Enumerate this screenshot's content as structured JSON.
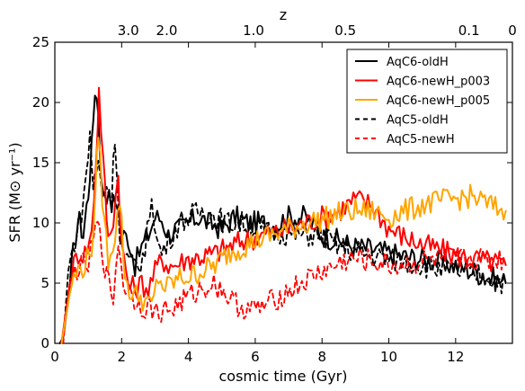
{
  "chart_data": {
    "type": "line",
    "xlabel": "cosmic time (Gyr)",
    "ylabel": "SFR (M⊙ yr⁻¹)",
    "top_axis_label": "z",
    "xlim": [
      0,
      13.7
    ],
    "ylim": [
      0,
      25
    ],
    "x_ticks": [
      0,
      2,
      4,
      6,
      8,
      10,
      12
    ],
    "y_ticks": [
      0,
      5,
      10,
      15,
      20,
      25
    ],
    "top_ticks": [
      {
        "label": "3.0",
        "t": 2.2
      },
      {
        "label": "2.0",
        "t": 3.35
      },
      {
        "label": "1.0",
        "t": 5.95
      },
      {
        "label": "0.5",
        "t": 8.7
      },
      {
        "label": "0.1",
        "t": 12.4
      },
      {
        "label": "0",
        "t": 13.7
      }
    ],
    "grid": false,
    "legend_position": "top-right",
    "series": [
      {
        "name": "AqC6-oldH",
        "color": "#000000",
        "dash": "solid",
        "points": [
          [
            0.15,
            0
          ],
          [
            0.25,
            0.5
          ],
          [
            0.4,
            3.5
          ],
          [
            0.55,
            7.5
          ],
          [
            0.7,
            10.5
          ],
          [
            0.85,
            9
          ],
          [
            1.0,
            12.5
          ],
          [
            1.1,
            16
          ],
          [
            1.2,
            21.2
          ],
          [
            1.3,
            19.5
          ],
          [
            1.4,
            13
          ],
          [
            1.55,
            12.5
          ],
          [
            1.7,
            11.5
          ],
          [
            1.85,
            12
          ],
          [
            2.0,
            9
          ],
          [
            2.2,
            8.8
          ],
          [
            2.4,
            6.5
          ],
          [
            2.6,
            8
          ],
          [
            2.8,
            9
          ],
          [
            3.0,
            10.5
          ],
          [
            3.2,
            10.3
          ],
          [
            3.4,
            9
          ],
          [
            3.6,
            9.5
          ],
          [
            3.8,
            9.5
          ],
          [
            4.0,
            10
          ],
          [
            4.3,
            10.5
          ],
          [
            4.6,
            10
          ],
          [
            5.0,
            9.5
          ],
          [
            5.4,
            10.5
          ],
          [
            5.8,
            10
          ],
          [
            6.2,
            10
          ],
          [
            6.6,
            9.8
          ],
          [
            7.0,
            10.5
          ],
          [
            7.5,
            10.5
          ],
          [
            8.0,
            9
          ],
          [
            8.5,
            8.5
          ],
          [
            9.0,
            8
          ],
          [
            9.5,
            7.8
          ],
          [
            10.0,
            7.5
          ],
          [
            10.5,
            7.2
          ],
          [
            11.0,
            7
          ],
          [
            11.5,
            6.8
          ],
          [
            12.0,
            6.5
          ],
          [
            12.5,
            6
          ],
          [
            13.0,
            5.5
          ],
          [
            13.5,
            5
          ]
        ]
      },
      {
        "name": "AqC6-newH_p003",
        "color": "#ff0000",
        "dash": "solid",
        "points": [
          [
            0.2,
            0
          ],
          [
            0.35,
            3
          ],
          [
            0.5,
            6
          ],
          [
            0.7,
            7.5
          ],
          [
            0.9,
            7.5
          ],
          [
            1.1,
            9
          ],
          [
            1.25,
            16
          ],
          [
            1.32,
            21
          ],
          [
            1.45,
            15
          ],
          [
            1.6,
            8.5
          ],
          [
            1.75,
            10.5
          ],
          [
            1.9,
            14
          ],
          [
            2.0,
            8
          ],
          [
            2.2,
            5
          ],
          [
            2.4,
            4.5
          ],
          [
            2.6,
            5
          ],
          [
            2.8,
            4.5
          ],
          [
            3.0,
            6
          ],
          [
            3.2,
            7
          ],
          [
            3.4,
            6.5
          ],
          [
            3.6,
            6.5
          ],
          [
            3.8,
            6.8
          ],
          [
            4.0,
            7
          ],
          [
            4.4,
            7.2
          ],
          [
            4.8,
            7.5
          ],
          [
            5.2,
            8
          ],
          [
            5.6,
            8.5
          ],
          [
            6.0,
            8.8
          ],
          [
            6.5,
            9.2
          ],
          [
            7.0,
            9.5
          ],
          [
            7.5,
            10
          ],
          [
            8.0,
            10.5
          ],
          [
            8.5,
            11
          ],
          [
            9.0,
            12
          ],
          [
            9.5,
            11.5
          ],
          [
            10.0,
            9.5
          ],
          [
            10.5,
            8.8
          ],
          [
            11.0,
            8.2
          ],
          [
            11.5,
            7.8
          ],
          [
            12.0,
            7.3
          ],
          [
            12.5,
            7
          ],
          [
            13.0,
            6.8
          ],
          [
            13.5,
            6.5
          ]
        ]
      },
      {
        "name": "AqC6-newH_p005",
        "color": "#ffa500",
        "dash": "solid",
        "points": [
          [
            0.2,
            0
          ],
          [
            0.35,
            2.5
          ],
          [
            0.5,
            5
          ],
          [
            0.7,
            6
          ],
          [
            0.9,
            6.5
          ],
          [
            1.1,
            8
          ],
          [
            1.22,
            12
          ],
          [
            1.3,
            18
          ],
          [
            1.42,
            12
          ],
          [
            1.6,
            7
          ],
          [
            1.8,
            9
          ],
          [
            1.95,
            12
          ],
          [
            2.1,
            5.5
          ],
          [
            2.3,
            4
          ],
          [
            2.5,
            4
          ],
          [
            2.7,
            3.5
          ],
          [
            2.9,
            3
          ],
          [
            3.1,
            5.5
          ],
          [
            3.3,
            4.5
          ],
          [
            3.5,
            5
          ],
          [
            3.8,
            5.5
          ],
          [
            4.0,
            5.5
          ],
          [
            4.4,
            6
          ],
          [
            4.8,
            6.5
          ],
          [
            5.2,
            7.5
          ],
          [
            5.6,
            8
          ],
          [
            6.0,
            8.5
          ],
          [
            6.5,
            9
          ],
          [
            7.0,
            9.5
          ],
          [
            7.5,
            10
          ],
          [
            8.0,
            10.3
          ],
          [
            8.5,
            10.8
          ],
          [
            9.0,
            11
          ],
          [
            9.5,
            11
          ],
          [
            10.0,
            10.5
          ],
          [
            10.5,
            11
          ],
          [
            11.0,
            11.5
          ],
          [
            11.5,
            11.8
          ],
          [
            12.0,
            12
          ],
          [
            12.5,
            12.2
          ],
          [
            13.0,
            11.5
          ],
          [
            13.5,
            11
          ]
        ]
      },
      {
        "name": "AqC5-oldH",
        "color": "#000000",
        "dash": "dashed",
        "points": [
          [
            0.25,
            0
          ],
          [
            0.4,
            6
          ],
          [
            0.6,
            8.5
          ],
          [
            0.8,
            11
          ],
          [
            0.95,
            14
          ],
          [
            1.05,
            17.5
          ],
          [
            1.15,
            13
          ],
          [
            1.3,
            15
          ],
          [
            1.42,
            12.5
          ],
          [
            1.55,
            13
          ],
          [
            1.7,
            12
          ],
          [
            1.8,
            17.5
          ],
          [
            1.95,
            9
          ],
          [
            2.1,
            7
          ],
          [
            2.3,
            6.5
          ],
          [
            2.5,
            6.5
          ],
          [
            2.7,
            7.5
          ],
          [
            2.9,
            12.5
          ],
          [
            3.05,
            8.5
          ],
          [
            3.2,
            7.5
          ],
          [
            3.4,
            8.5
          ],
          [
            3.6,
            9.5
          ],
          [
            3.8,
            10.2
          ],
          [
            4.0,
            10.5
          ],
          [
            4.4,
            11
          ],
          [
            4.8,
            10.5
          ],
          [
            5.2,
            10
          ],
          [
            5.6,
            10
          ],
          [
            6.0,
            9.5
          ],
          [
            6.4,
            9.2
          ],
          [
            6.8,
            9.2
          ],
          [
            7.2,
            9
          ],
          [
            7.6,
            9
          ],
          [
            8.0,
            9
          ],
          [
            8.4,
            8.2
          ],
          [
            8.8,
            7.8
          ],
          [
            9.2,
            7.5
          ],
          [
            9.6,
            7.2
          ],
          [
            10.0,
            7
          ],
          [
            10.5,
            6.8
          ],
          [
            11.0,
            6.5
          ],
          [
            11.5,
            6.2
          ],
          [
            12.0,
            6
          ],
          [
            12.5,
            5.8
          ],
          [
            13.0,
            5.5
          ],
          [
            13.5,
            5
          ]
        ]
      },
      {
        "name": "AqC5-newH",
        "color": "#ff0000",
        "dash": "dashed",
        "points": [
          [
            0.25,
            0
          ],
          [
            0.4,
            4
          ],
          [
            0.6,
            6
          ],
          [
            0.8,
            6.5
          ],
          [
            1.0,
            6.5
          ],
          [
            1.15,
            8.5
          ],
          [
            1.28,
            10
          ],
          [
            1.4,
            8
          ],
          [
            1.55,
            5.5
          ],
          [
            1.75,
            3.8
          ],
          [
            1.9,
            8.5
          ],
          [
            2.05,
            5
          ],
          [
            2.25,
            4.2
          ],
          [
            2.45,
            3.5
          ],
          [
            2.65,
            3
          ],
          [
            2.85,
            3
          ],
          [
            3.05,
            2.5
          ],
          [
            3.25,
            2.8
          ],
          [
            3.5,
            2.8
          ],
          [
            3.8,
            3.5
          ],
          [
            4.1,
            4
          ],
          [
            4.4,
            4.5
          ],
          [
            4.7,
            5
          ],
          [
            5.0,
            4.5
          ],
          [
            5.3,
            3.5
          ],
          [
            5.6,
            3
          ],
          [
            5.9,
            2.8
          ],
          [
            6.2,
            3
          ],
          [
            6.5,
            3.5
          ],
          [
            6.8,
            4
          ],
          [
            7.1,
            4.5
          ],
          [
            7.4,
            5
          ],
          [
            7.7,
            5.5
          ],
          [
            8.0,
            6
          ],
          [
            8.3,
            6.2
          ],
          [
            8.6,
            6.8
          ],
          [
            9.0,
            7
          ],
          [
            9.5,
            6.8
          ],
          [
            10.0,
            6.5
          ],
          [
            10.5,
            6.5
          ],
          [
            11.0,
            6.8
          ],
          [
            11.5,
            7
          ],
          [
            12.0,
            7
          ],
          [
            12.5,
            7
          ],
          [
            13.0,
            7
          ],
          [
            13.5,
            7
          ]
        ]
      }
    ]
  }
}
